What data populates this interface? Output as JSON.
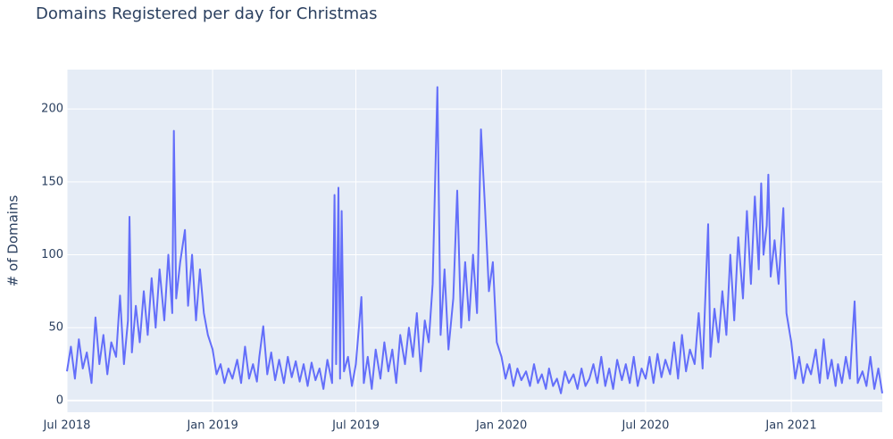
{
  "chart_data": {
    "type": "line",
    "title": "Domains Registered per day for Christmas",
    "y_label": "# of Domains",
    "color": "#636efa",
    "grid": true,
    "xlim": [
      "2018-07-01",
      "2021-04-26"
    ],
    "xticks": [
      {
        "value": "2018-07-01",
        "label": "Jul 2018"
      },
      {
        "value": "2019-01-01",
        "label": "Jan 2019"
      },
      {
        "value": "2019-07-01",
        "label": "Jul 2019"
      },
      {
        "value": "2020-01-01",
        "label": "Jan 2020"
      },
      {
        "value": "2020-07-01",
        "label": "Jul 2020"
      },
      {
        "value": "2021-01-01",
        "label": "Jan 2021"
      }
    ],
    "ylim": [
      -8,
      227
    ],
    "yticks": [
      0,
      50,
      100,
      150,
      200
    ],
    "x": [
      "2018-07-01",
      "2018-07-06",
      "2018-07-11",
      "2018-07-16",
      "2018-07-21",
      "2018-07-26",
      "2018-08-01",
      "2018-08-06",
      "2018-08-11",
      "2018-08-16",
      "2018-08-21",
      "2018-08-26",
      "2018-09-01",
      "2018-09-06",
      "2018-09-11",
      "2018-09-16",
      "2018-09-18",
      "2018-09-21",
      "2018-09-26",
      "2018-10-01",
      "2018-10-06",
      "2018-10-11",
      "2018-10-16",
      "2018-10-21",
      "2018-10-26",
      "2018-11-01",
      "2018-11-06",
      "2018-11-11",
      "2018-11-13",
      "2018-11-16",
      "2018-11-21",
      "2018-11-27",
      "2018-12-01",
      "2018-12-06",
      "2018-12-11",
      "2018-12-16",
      "2018-12-21",
      "2018-12-26",
      "2019-01-01",
      "2019-01-06",
      "2019-01-11",
      "2019-01-16",
      "2019-01-21",
      "2019-01-26",
      "2019-02-01",
      "2019-02-06",
      "2019-02-11",
      "2019-02-16",
      "2019-02-21",
      "2019-02-26",
      "2019-03-01",
      "2019-03-06",
      "2019-03-11",
      "2019-03-16",
      "2019-03-21",
      "2019-03-26",
      "2019-04-01",
      "2019-04-06",
      "2019-04-11",
      "2019-04-16",
      "2019-04-21",
      "2019-04-26",
      "2019-05-01",
      "2019-05-06",
      "2019-05-11",
      "2019-05-16",
      "2019-05-21",
      "2019-05-26",
      "2019-06-01",
      "2019-06-04",
      "2019-06-06",
      "2019-06-09",
      "2019-06-11",
      "2019-06-13",
      "2019-06-16",
      "2019-06-21",
      "2019-06-26",
      "2019-07-01",
      "2019-07-08",
      "2019-07-11",
      "2019-07-16",
      "2019-07-21",
      "2019-07-26",
      "2019-08-01",
      "2019-08-06",
      "2019-08-11",
      "2019-08-16",
      "2019-08-21",
      "2019-08-26",
      "2019-09-01",
      "2019-09-06",
      "2019-09-11",
      "2019-09-16",
      "2019-09-21",
      "2019-09-26",
      "2019-10-01",
      "2019-10-06",
      "2019-10-12",
      "2019-10-16",
      "2019-10-21",
      "2019-10-26",
      "2019-11-01",
      "2019-11-06",
      "2019-11-11",
      "2019-11-16",
      "2019-11-21",
      "2019-11-26",
      "2019-12-01",
      "2019-12-06",
      "2019-12-11",
      "2019-12-16",
      "2019-12-21",
      "2019-12-26",
      "2020-01-01",
      "2020-01-06",
      "2020-01-11",
      "2020-01-16",
      "2020-01-21",
      "2020-01-26",
      "2020-02-01",
      "2020-02-06",
      "2020-02-11",
      "2020-02-16",
      "2020-02-21",
      "2020-02-26",
      "2020-03-01",
      "2020-03-06",
      "2020-03-11",
      "2020-03-16",
      "2020-03-21",
      "2020-03-26",
      "2020-04-01",
      "2020-04-06",
      "2020-04-11",
      "2020-04-16",
      "2020-04-21",
      "2020-04-26",
      "2020-05-01",
      "2020-05-06",
      "2020-05-11",
      "2020-05-16",
      "2020-05-21",
      "2020-05-26",
      "2020-06-01",
      "2020-06-06",
      "2020-06-11",
      "2020-06-16",
      "2020-06-21",
      "2020-06-26",
      "2020-07-01",
      "2020-07-06",
      "2020-07-11",
      "2020-07-16",
      "2020-07-21",
      "2020-07-26",
      "2020-08-01",
      "2020-08-06",
      "2020-08-11",
      "2020-08-16",
      "2020-08-21",
      "2020-08-26",
      "2020-09-01",
      "2020-09-06",
      "2020-09-11",
      "2020-09-18",
      "2020-09-21",
      "2020-09-26",
      "2020-10-01",
      "2020-10-06",
      "2020-10-11",
      "2020-10-16",
      "2020-10-21",
      "2020-10-26",
      "2020-11-01",
      "2020-11-06",
      "2020-11-11",
      "2020-11-16",
      "2020-11-21",
      "2020-11-24",
      "2020-11-27",
      "2020-12-01",
      "2020-12-03",
      "2020-12-06",
      "2020-12-11",
      "2020-12-16",
      "2020-12-22",
      "2020-12-26",
      "2021-01-01",
      "2021-01-06",
      "2021-01-11",
      "2021-01-16",
      "2021-01-21",
      "2021-01-26",
      "2021-02-01",
      "2021-02-06",
      "2021-02-11",
      "2021-02-16",
      "2021-02-21",
      "2021-02-26",
      "2021-03-01",
      "2021-03-06",
      "2021-03-11",
      "2021-03-16",
      "2021-03-22",
      "2021-03-26",
      "2021-04-01",
      "2021-04-06",
      "2021-04-11",
      "2021-04-16",
      "2021-04-21",
      "2021-04-26"
    ],
    "values": [
      20,
      37,
      15,
      42,
      22,
      33,
      12,
      57,
      25,
      45,
      18,
      40,
      30,
      72,
      25,
      55,
      126,
      33,
      65,
      40,
      75,
      45,
      84,
      50,
      90,
      55,
      100,
      60,
      185,
      70,
      95,
      117,
      65,
      100,
      55,
      90,
      60,
      45,
      35,
      18,
      25,
      12,
      22,
      15,
      28,
      12,
      37,
      15,
      25,
      13,
      30,
      51,
      18,
      33,
      14,
      28,
      12,
      30,
      16,
      27,
      13,
      25,
      10,
      26,
      14,
      22,
      8,
      28,
      12,
      141,
      25,
      146,
      15,
      130,
      20,
      30,
      10,
      25,
      71,
      12,
      30,
      8,
      35,
      15,
      40,
      20,
      35,
      12,
      45,
      25,
      50,
      30,
      60,
      20,
      55,
      40,
      80,
      215,
      45,
      90,
      35,
      70,
      144,
      50,
      95,
      55,
      100,
      60,
      186,
      134,
      75,
      95,
      40,
      30,
      15,
      25,
      10,
      22,
      14,
      20,
      10,
      25,
      12,
      18,
      8,
      22,
      10,
      15,
      5,
      20,
      12,
      18,
      8,
      22,
      10,
      15,
      25,
      12,
      30,
      10,
      22,
      8,
      28,
      14,
      25,
      12,
      30,
      10,
      22,
      15,
      30,
      12,
      32,
      16,
      28,
      18,
      40,
      15,
      45,
      20,
      35,
      25,
      60,
      22,
      121,
      30,
      63,
      40,
      75,
      45,
      100,
      55,
      112,
      70,
      130,
      80,
      140,
      90,
      149,
      100,
      120,
      155,
      85,
      110,
      80,
      132,
      60,
      40,
      15,
      30,
      12,
      25,
      18,
      35,
      12,
      42,
      15,
      28,
      10,
      25,
      12,
      30,
      15,
      68,
      12,
      20,
      10,
      30,
      8,
      22,
      5
    ]
  }
}
